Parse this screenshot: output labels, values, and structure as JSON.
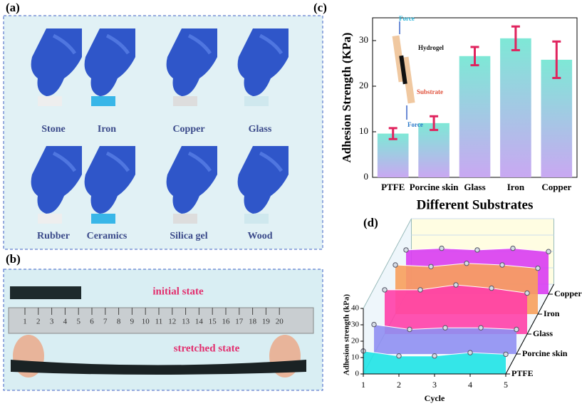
{
  "panel_a": {
    "letter": "(a)",
    "labels": [
      "Stone",
      "Iron",
      "Copper",
      "Glass",
      "Rubber",
      "Ceramics",
      "Silica gel",
      "Wood"
    ]
  },
  "panel_b": {
    "letter": "(b)",
    "initial": "initial state",
    "stretched": "stretched state",
    "ruler_numbers": [
      1,
      2,
      3,
      4,
      5,
      6,
      7,
      8,
      9,
      10,
      11,
      12,
      13,
      14,
      15,
      16,
      17,
      18,
      19,
      20
    ]
  },
  "chart_data": [
    {
      "type": "bar",
      "panel": "(c)",
      "xlabel": "Different Substrates",
      "ylabel": "Adhesion Strength (KPa)",
      "categories": [
        "PTFE",
        "Porcine skin",
        "Glass",
        "Iron",
        "Copper"
      ],
      "values": [
        9.6,
        11.9,
        26.6,
        30.5,
        25.8
      ],
      "errors": [
        1.2,
        1.5,
        2.0,
        2.6,
        4.0
      ],
      "error_color": "#e0245e",
      "ylim": [
        0,
        35
      ],
      "yticks": [
        0,
        10,
        20,
        30
      ],
      "inset_labels": [
        "Force",
        "Hydrogel",
        "Substrate",
        "Force"
      ]
    },
    {
      "type": "ribbon3d",
      "panel": "(d)",
      "xlabel": "Cycle",
      "ylabel": "Adhesion strength (kPa)",
      "xlim": [
        1,
        5
      ],
      "xticks": [
        1,
        2,
        3,
        4,
        5
      ],
      "ylim": [
        0,
        40
      ],
      "yticks": [
        0,
        10,
        20,
        30,
        40
      ],
      "series": [
        {
          "name": "PTFE",
          "color": "#1fe3e6",
          "values": [
            14,
            11,
            11,
            13,
            12
          ]
        },
        {
          "name": "Porcine skin",
          "color": "#8f8ff2",
          "values": [
            18,
            15,
            16,
            16,
            15
          ]
        },
        {
          "name": "Glass",
          "color": "#ff3fa8",
          "values": [
            27,
            27,
            30,
            28,
            25
          ]
        },
        {
          "name": "Iron",
          "color": "#f7a05c",
          "values": [
            30,
            29,
            31,
            30,
            28
          ]
        },
        {
          "name": "Copper",
          "color": "#d93cf2",
          "values": [
            27,
            28,
            27,
            28,
            26
          ]
        }
      ]
    }
  ]
}
